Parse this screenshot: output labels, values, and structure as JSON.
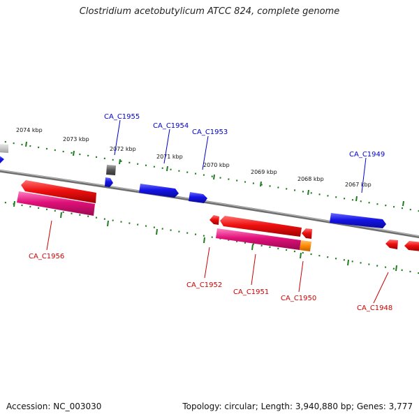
{
  "title": "Clostridium acetobutylicum ATCC 824, complete genome",
  "footer": {
    "accession": "Accession: NC_003030",
    "summary": "Topology: circular; Length: 3,940,880 bp; Genes: 3,777"
  },
  "colors": {
    "forward_gene": "#1414e6",
    "reverse_gene": "#e81010",
    "pink_gene": "#e0107a",
    "orange_gene": "#ff8c00",
    "gray_gene": "#555555",
    "light_gene": "#c8c8c8",
    "tick": "#1e7b1e",
    "backbone": "#888888",
    "forward_label": "#0000cc",
    "reverse_label": "#cc0000"
  },
  "scale_labels": [
    "2074 kbp",
    "2073 kbp",
    "2072 kbp",
    "2071 kbp",
    "2070 kbp",
    "2069 kbp",
    "2068 kbp",
    "2067 kbp"
  ],
  "gene_labels": {
    "forward": [
      "CA_C1955",
      "CA_C1954",
      "CA_C1953",
      "CA_C1949"
    ],
    "reverse": [
      "CA_C1956",
      "CA_C1952",
      "CA_C1951",
      "CA_C1950",
      "CA_C1948"
    ]
  }
}
